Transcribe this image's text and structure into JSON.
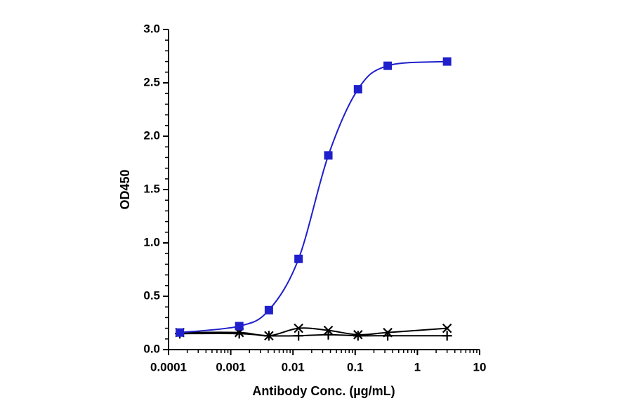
{
  "chart_data": {
    "type": "scatter",
    "x_label": "Antibody Conc. (µg/mL)",
    "y_label": "OD450",
    "x_scale": "log",
    "x": [
      0.000152,
      0.00137,
      0.0041,
      0.0123,
      0.037,
      0.111,
      0.333,
      3
    ],
    "series": [
      {
        "color": "#1f1fcc",
        "marker": "square",
        "values": [
          0.16,
          0.22,
          0.37,
          0.85,
          1.82,
          2.44,
          2.66,
          2.7
        ]
      },
      {
        "color": "#000000",
        "marker": "x",
        "values": [
          0.16,
          0.16,
          0.13,
          0.2,
          0.18,
          0.14,
          0.16,
          0.2
        ]
      },
      {
        "color": "#000000",
        "marker": "plus",
        "values": [
          0.15,
          0.15,
          0.13,
          0.13,
          0.14,
          0.13,
          0.13,
          0.13
        ]
      }
    ],
    "xlim": [
      0.0001,
      10
    ],
    "xticks": [
      0.0001,
      0.001,
      0.01,
      0.1,
      1,
      10
    ],
    "ylim": [
      0,
      3
    ],
    "yticks": [
      {
        "value": 0,
        "label": "0.0"
      },
      0.5,
      {
        "value": 1,
        "label": "1.0"
      },
      1.5,
      {
        "value": 2,
        "label": "2.0"
      },
      2.5,
      {
        "value": 3,
        "label": "3.0"
      }
    ]
  }
}
